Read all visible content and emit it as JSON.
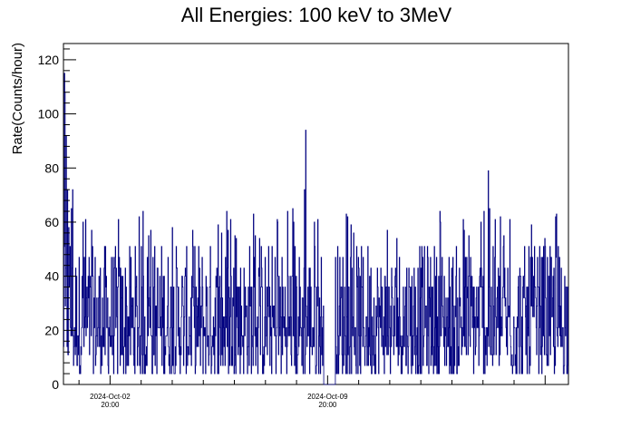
{
  "chart_data": {
    "type": "histogram-line",
    "title": "All Energies:  100 keV to 3MeV",
    "ylabel": "Rate(Counts/hour)",
    "xlabel": "",
    "ylim": [
      0,
      126
    ],
    "yticks": [
      0,
      20,
      40,
      60,
      80,
      100,
      120
    ],
    "xticks": [
      {
        "date": "2024-Oct-02",
        "time": "20:00"
      },
      {
        "date": "2024-Oct-09",
        "time": "20:00"
      }
    ],
    "x_range_hours": [
      -36,
      354
    ],
    "line_color": "#00007f",
    "grid": false,
    "data_gap_hours": [
      165,
      174
    ],
    "notable_values": [
      {
        "hour": -35.5,
        "rate": 115
      },
      {
        "hour": -35,
        "rate": 108
      },
      {
        "hour": -34,
        "rate": 92
      },
      {
        "hour": -33,
        "rate": 72
      },
      {
        "hour": -32,
        "rate": 58
      },
      {
        "hour": -31,
        "rate": 51
      },
      {
        "hour": -30,
        "rate": 65
      },
      {
        "hour": -29,
        "rate": 72
      },
      {
        "hour": 151,
        "rate": 94
      },
      {
        "hour": 150,
        "rate": 72
      },
      {
        "hour": 292,
        "rate": 79
      },
      {
        "hour": 293,
        "rate": 65
      }
    ],
    "typical_range": [
      0,
      65
    ]
  }
}
